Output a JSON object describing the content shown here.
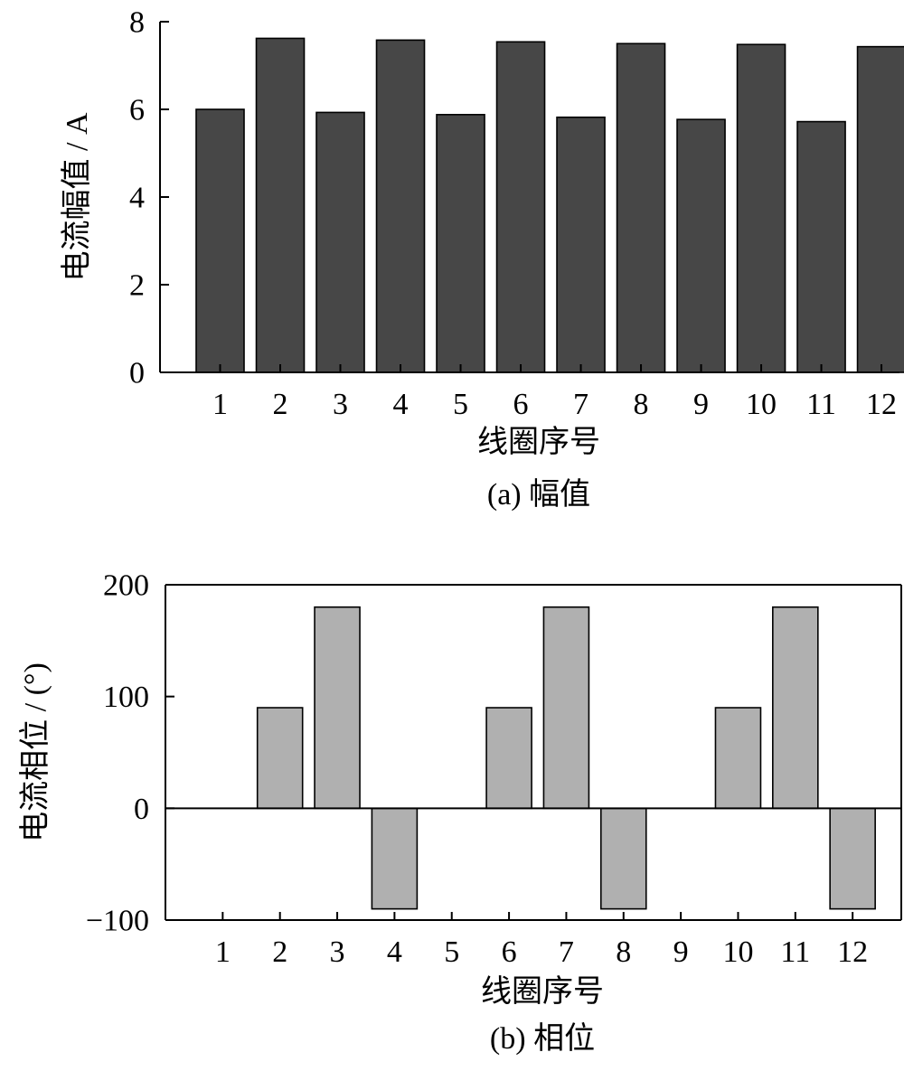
{
  "chart_data": [
    {
      "type": "bar",
      "caption": "(a)  幅值",
      "xlabel": "线圈序号",
      "ylabel": "电流幅值 / A",
      "categories": [
        "1",
        "2",
        "3",
        "4",
        "5",
        "6",
        "7",
        "8",
        "9",
        "10",
        "11",
        "12"
      ],
      "values": [
        6.0,
        7.62,
        5.93,
        7.58,
        5.88,
        7.54,
        5.82,
        7.5,
        5.77,
        7.48,
        5.72,
        7.43
      ],
      "ylim": [
        0,
        8
      ],
      "yticks": [
        0,
        2,
        4,
        6,
        8
      ],
      "xlim": [
        0,
        12.3
      ],
      "bar_color": "#474747",
      "grid": false
    },
    {
      "type": "bar",
      "caption": "(b)  相位",
      "xlabel": "线圈序号",
      "ylabel": "电流相位 / (°)",
      "categories": [
        "1",
        "2",
        "3",
        "4",
        "5",
        "6",
        "7",
        "8",
        "9",
        "10",
        "11",
        "12"
      ],
      "values": [
        0,
        90,
        180,
        -90,
        0,
        90,
        180,
        -90,
        0,
        90,
        180,
        -90
      ],
      "ylim": [
        -100,
        200
      ],
      "yticks": [
        -100,
        0,
        100,
        200
      ],
      "xlim": [
        0,
        12.85
      ],
      "bar_color": "#b0b0b0",
      "grid": false
    }
  ]
}
